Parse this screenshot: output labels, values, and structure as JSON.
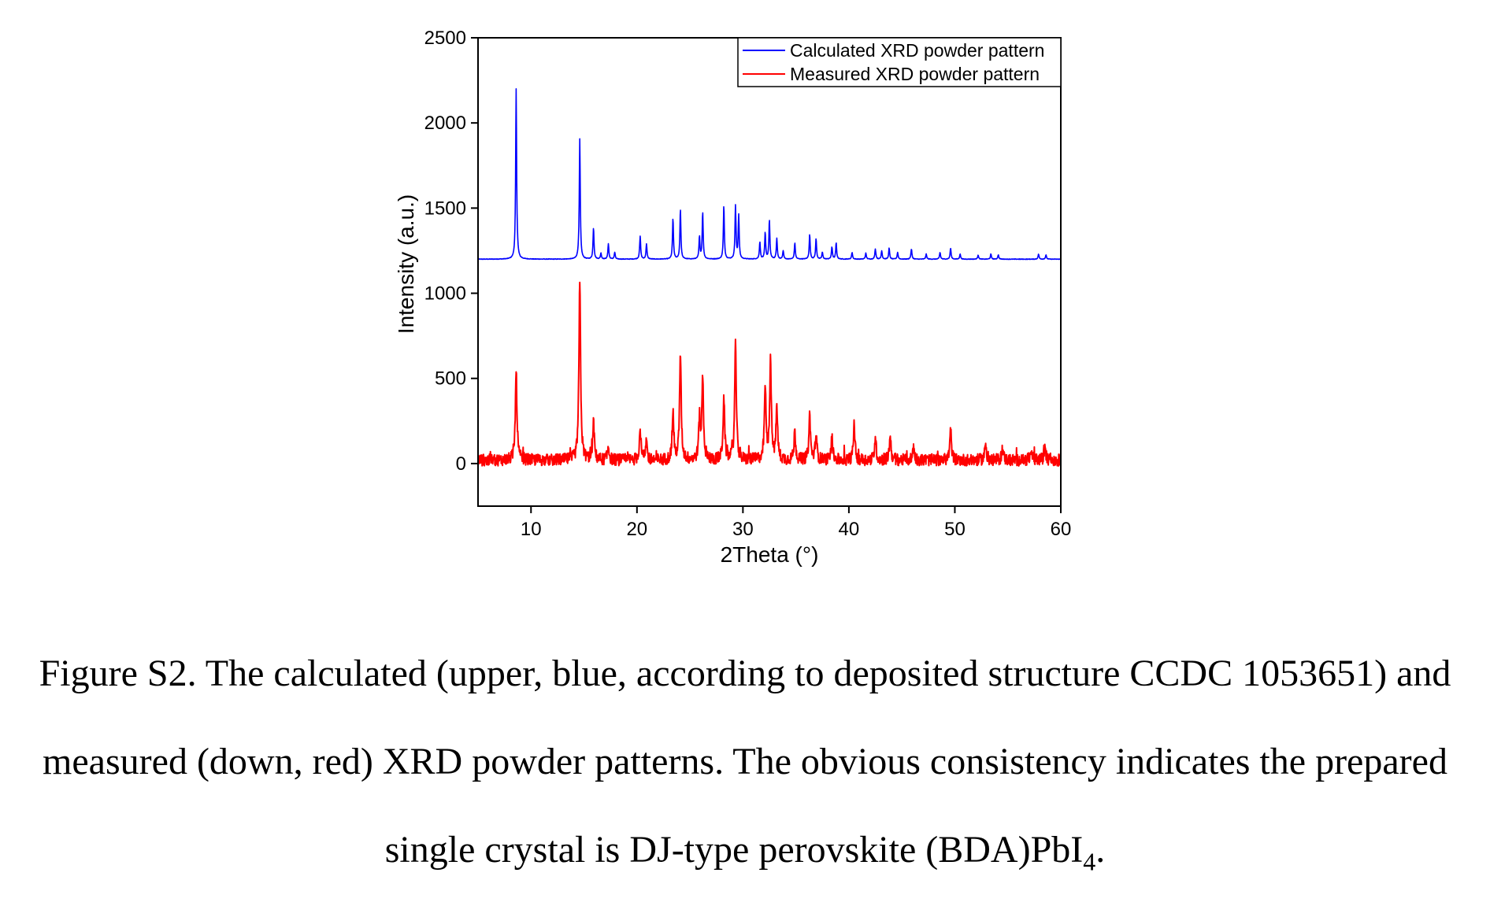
{
  "chart_data": {
    "type": "line",
    "xlabel": "2Theta (°)",
    "ylabel": "Intensity (a.u.)",
    "xlim": [
      5,
      60
    ],
    "ylim": [
      -250,
      2500
    ],
    "xticks": [
      10,
      20,
      30,
      40,
      50,
      60
    ],
    "yticks": [
      0,
      500,
      1000,
      1500,
      2000,
      2500
    ],
    "grid": false,
    "legend_position": "top-right",
    "series": [
      {
        "name": "Calculated XRD powder pattern",
        "color": "#0000ff",
        "baseline": 1200,
        "peaks": [
          [
            8.6,
            2200
          ],
          [
            14.6,
            1905
          ],
          [
            15.9,
            1385
          ],
          [
            16.6,
            1235
          ],
          [
            17.3,
            1290
          ],
          [
            17.9,
            1240
          ],
          [
            20.3,
            1335
          ],
          [
            20.9,
            1290
          ],
          [
            23.4,
            1440
          ],
          [
            24.1,
            1495
          ],
          [
            25.9,
            1330
          ],
          [
            26.2,
            1475
          ],
          [
            28.2,
            1515
          ],
          [
            29.3,
            1510
          ],
          [
            29.6,
            1455
          ],
          [
            31.6,
            1300
          ],
          [
            32.1,
            1355
          ],
          [
            32.5,
            1430
          ],
          [
            33.2,
            1320
          ],
          [
            33.8,
            1250
          ],
          [
            34.9,
            1295
          ],
          [
            36.3,
            1345
          ],
          [
            36.9,
            1320
          ],
          [
            37.5,
            1240
          ],
          [
            38.4,
            1270
          ],
          [
            38.8,
            1295
          ],
          [
            40.3,
            1240
          ],
          [
            41.6,
            1235
          ],
          [
            42.5,
            1260
          ],
          [
            43.1,
            1250
          ],
          [
            43.8,
            1265
          ],
          [
            44.6,
            1240
          ],
          [
            45.9,
            1260
          ],
          [
            47.3,
            1230
          ],
          [
            48.6,
            1240
          ],
          [
            49.6,
            1265
          ],
          [
            50.5,
            1230
          ],
          [
            52.2,
            1225
          ],
          [
            53.4,
            1230
          ],
          [
            54.1,
            1225
          ],
          [
            57.9,
            1230
          ],
          [
            58.6,
            1225
          ]
        ]
      },
      {
        "name": "Measured XRD powder pattern",
        "color": "#ff0000",
        "baseline": 20,
        "peaks": [
          [
            8.6,
            545
          ],
          [
            14.6,
            1070
          ],
          [
            15.9,
            240
          ],
          [
            17.3,
            100
          ],
          [
            20.3,
            200
          ],
          [
            20.9,
            120
          ],
          [
            23.4,
            300
          ],
          [
            24.1,
            650
          ],
          [
            25.9,
            250
          ],
          [
            26.2,
            505
          ],
          [
            28.2,
            385
          ],
          [
            29.3,
            690
          ],
          [
            32.1,
            450
          ],
          [
            32.6,
            590
          ],
          [
            33.2,
            330
          ],
          [
            34.9,
            190
          ],
          [
            36.3,
            280
          ],
          [
            36.9,
            170
          ],
          [
            38.4,
            150
          ],
          [
            40.5,
            220
          ],
          [
            42.5,
            150
          ],
          [
            43.9,
            165
          ],
          [
            46.1,
            100
          ],
          [
            49.6,
            200
          ],
          [
            52.9,
            120
          ],
          [
            54.5,
            90
          ],
          [
            57.2,
            80
          ],
          [
            58.5,
            100
          ]
        ]
      }
    ]
  },
  "caption": {
    "line1": "Figure S2. The calculated (upper, blue, according to deposited structure CCDC 1053651) and",
    "line2": "measured (down, red) XRD powder patterns. The obvious consistency indicates the prepared",
    "line3_main": "single crystal is DJ-type perovskite (BDA)PbI",
    "line3_sub": "4",
    "line3_end": "."
  }
}
